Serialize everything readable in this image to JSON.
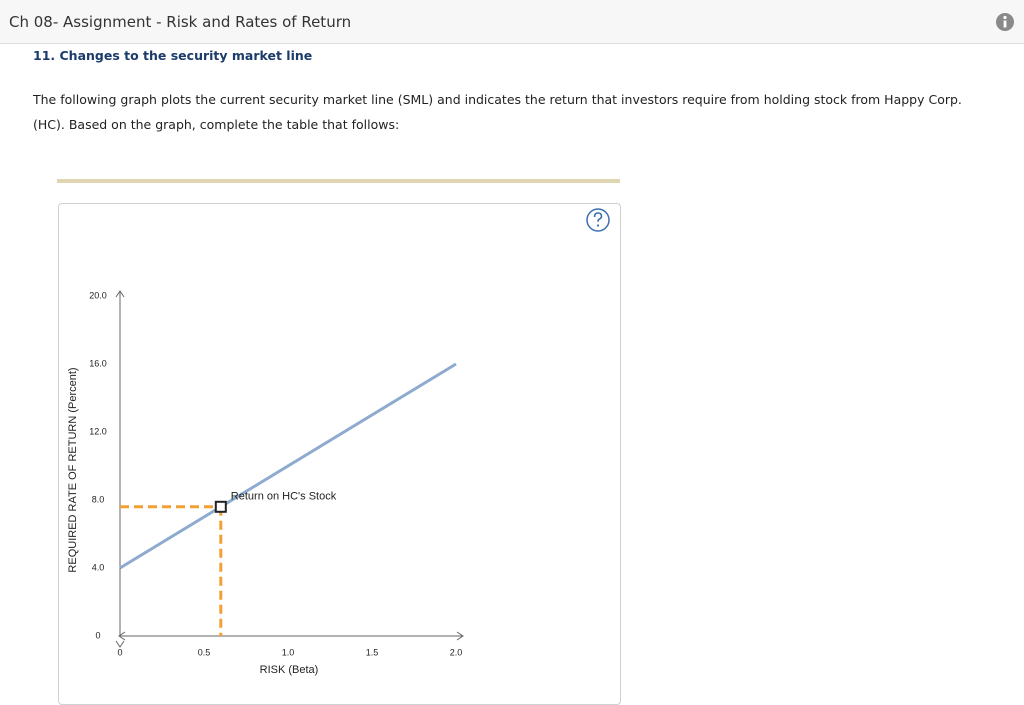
{
  "header": {
    "title": "Ch 08- Assignment - Risk and Rates of Return"
  },
  "question": {
    "title": "11. Changes to the security market line",
    "text": "The following graph plots the current security market line (SML) and indicates the return that investors require from holding stock from Happy Corp. (HC). Based on the graph, complete the table that follows:"
  },
  "chart_data": {
    "type": "line",
    "x_label": "RISK (Beta)",
    "y_label": "REQUIRED RATE OF RETURN (Percent)",
    "x": [
      0,
      2
    ],
    "series": [
      {
        "color": "#8eabcf",
        "values": [
          4,
          16
        ]
      }
    ],
    "point": {
      "x": 0.6,
      "y": 7.6,
      "label": "Return on HC's Stock",
      "color": "#f2a033"
    },
    "xlim": [
      0,
      2
    ],
    "ylim": [
      0,
      20
    ],
    "xticks": [
      0,
      0.5,
      {
        "value": 1,
        "label": "1.0"
      },
      1.5,
      {
        "value": 2,
        "label": "2.0"
      }
    ],
    "yticks": [
      0,
      {
        "value": 4,
        "label": "4.0"
      },
      {
        "value": 8,
        "label": "8.0"
      },
      {
        "value": 12,
        "label": "12.0"
      },
      {
        "value": 16,
        "label": "16.0"
      },
      {
        "value": 20,
        "label": "20.0"
      }
    ],
    "grid": false
  }
}
